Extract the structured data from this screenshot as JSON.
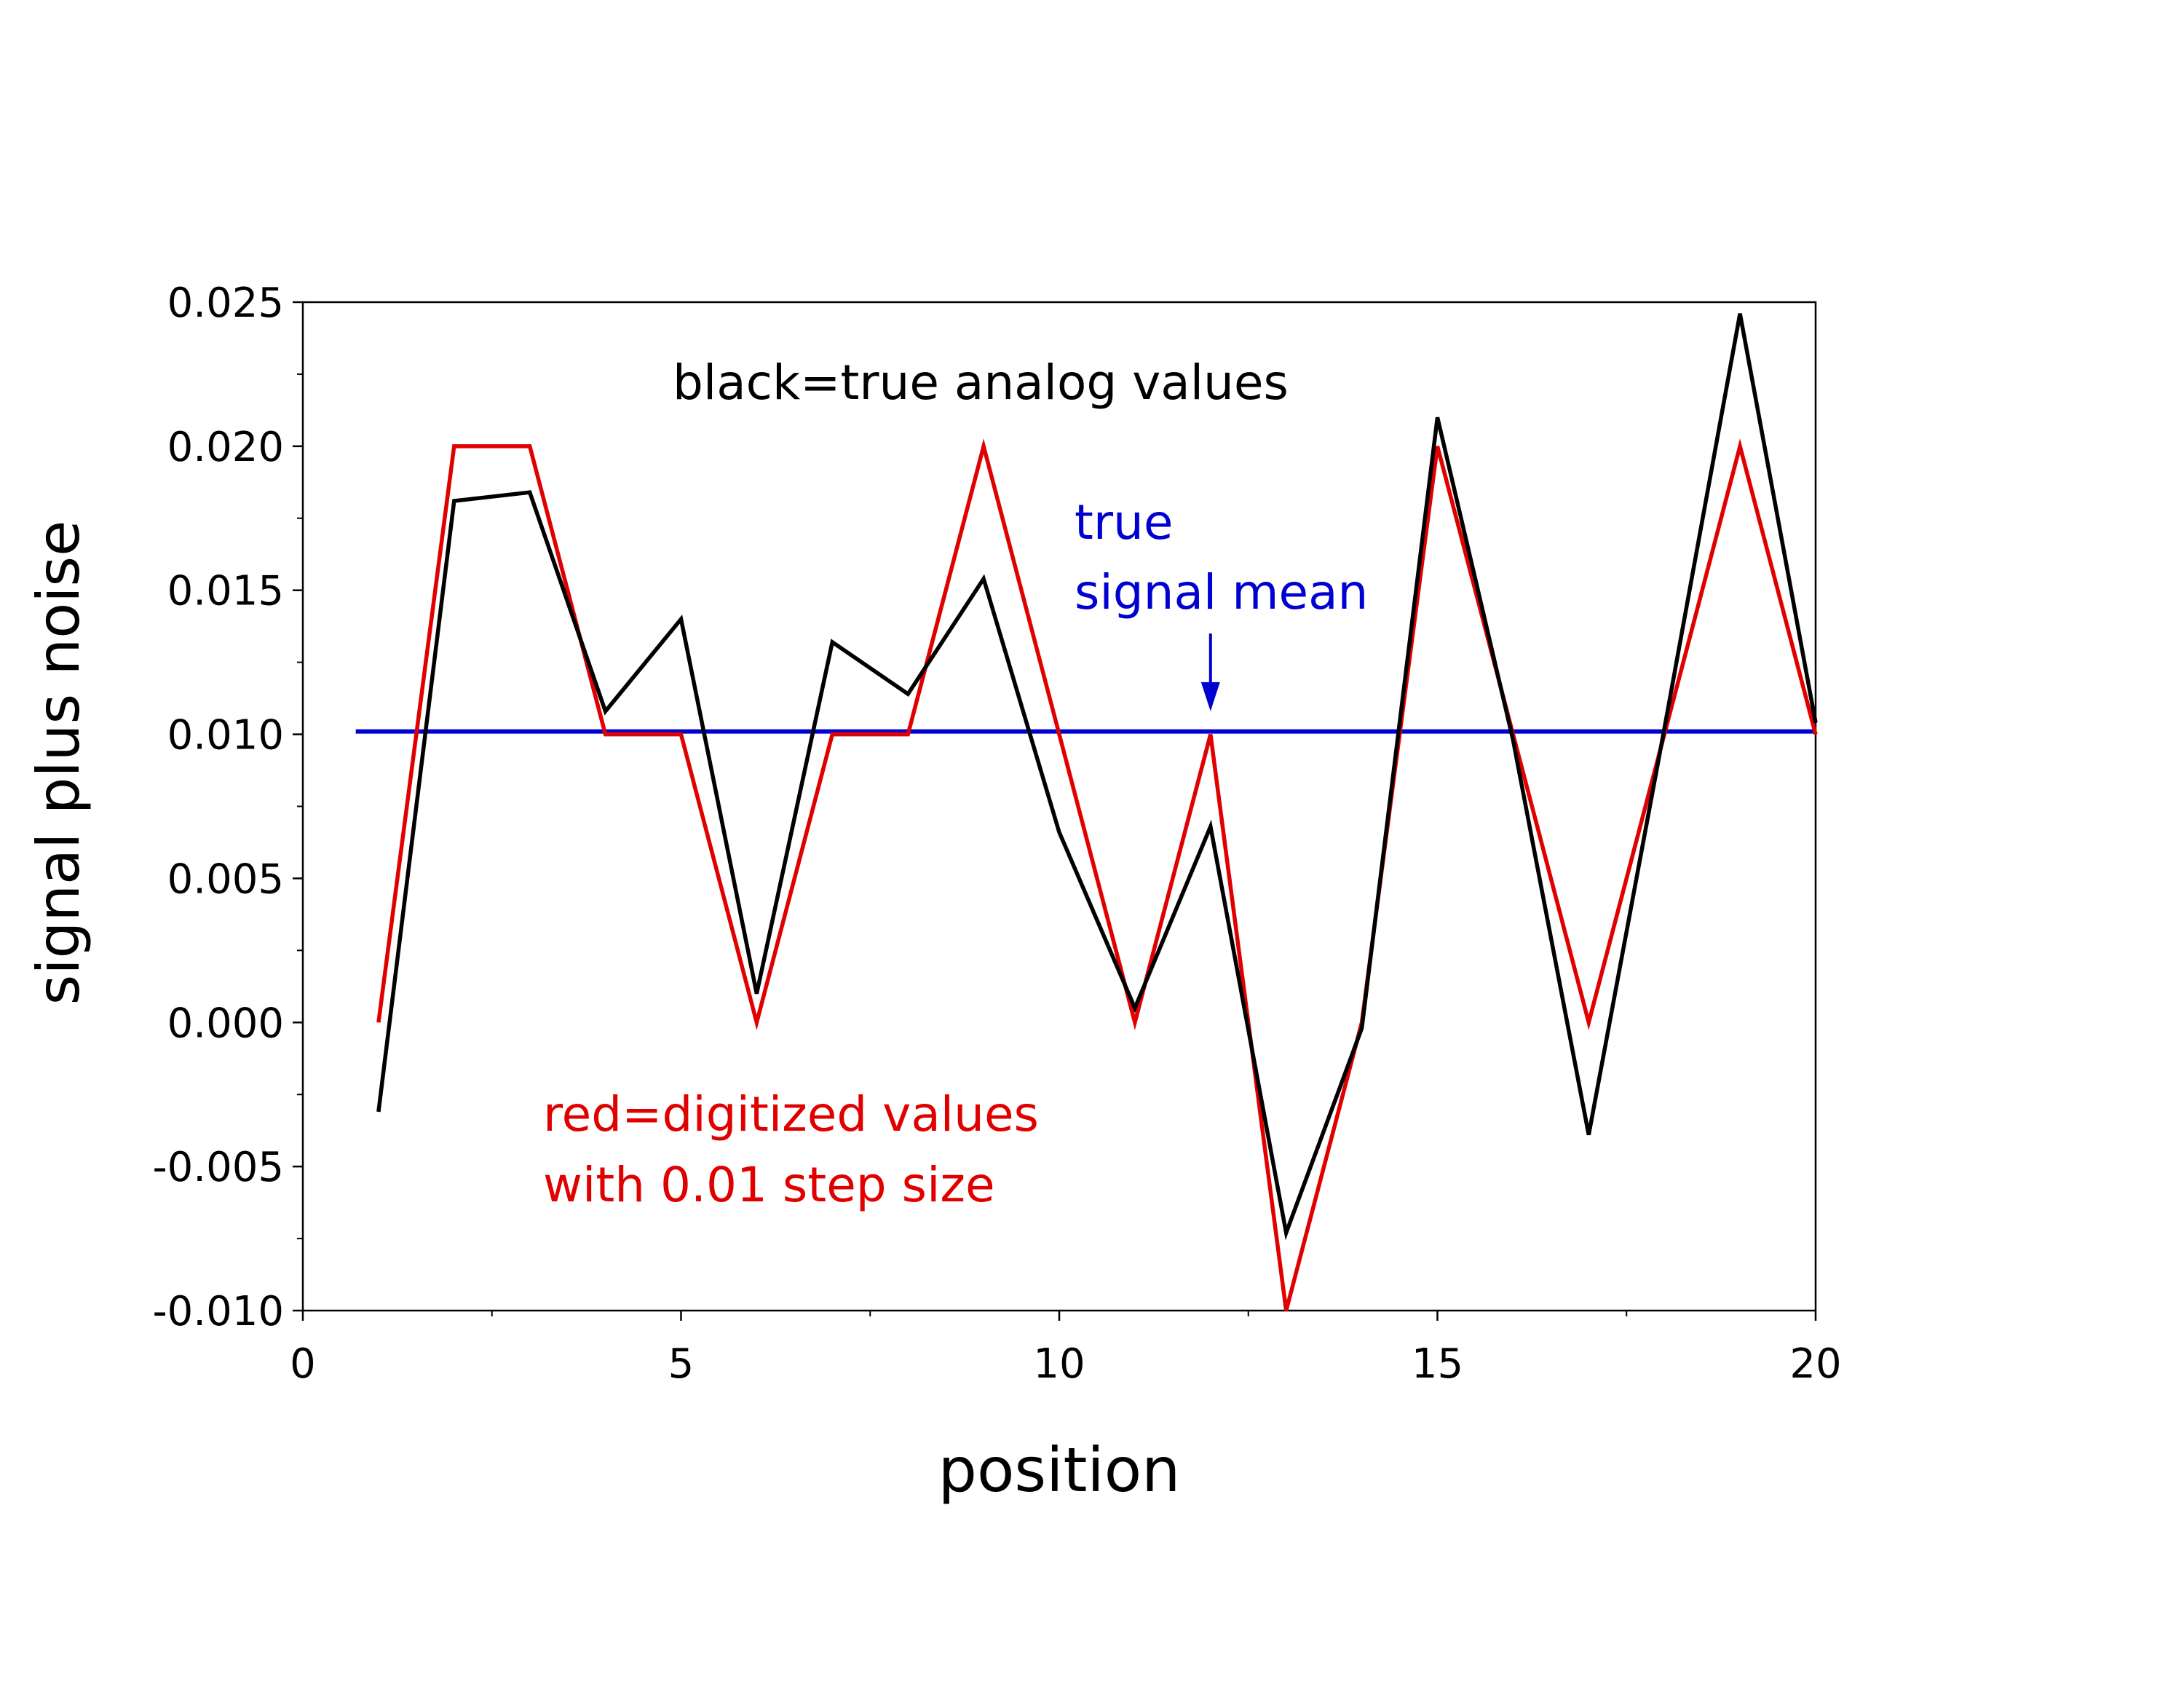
{
  "chart_data": {
    "type": "line",
    "title": "",
    "xlabel": "position",
    "ylabel": "signal plus noise",
    "xlim": [
      0,
      20
    ],
    "ylim": [
      -0.01,
      0.025
    ],
    "x_ticks": [
      0,
      5,
      10,
      15,
      20
    ],
    "x_tick_labels": [
      "0",
      "5",
      "10",
      "15",
      "20"
    ],
    "y_ticks": [
      -0.01,
      -0.005,
      0.0,
      0.005,
      0.01,
      0.015,
      0.02,
      0.025
    ],
    "y_tick_labels": [
      "-0.010",
      "-0.005",
      "0.000",
      "0.005",
      "0.010",
      "0.015",
      "0.020",
      "0.025"
    ],
    "grid": false,
    "colors": {
      "analog": "#000000",
      "digitized": "#e00000",
      "mean": "#0000d0"
    },
    "series": [
      {
        "color": "#000000",
        "x": [
          1,
          2,
          3,
          4,
          5,
          6,
          7,
          8,
          9,
          10,
          11,
          12,
          13,
          14,
          15,
          16,
          17,
          18,
          19,
          20
        ],
        "values": [
          -0.0031,
          0.0181,
          0.0184,
          0.0108,
          0.014,
          0.001,
          0.0132,
          0.0114,
          0.0154,
          0.0066,
          0.0005,
          0.0068,
          -0.0073,
          -0.0002,
          0.021,
          0.0098,
          -0.0039,
          0.0102,
          0.0246,
          0.0104
        ]
      },
      {
        "color": "#e00000",
        "x": [
          1,
          2,
          3,
          4,
          5,
          6,
          7,
          8,
          9,
          10,
          11,
          12,
          13,
          14,
          15,
          16,
          17,
          18,
          19,
          20
        ],
        "values": [
          0.0,
          0.02,
          0.02,
          0.01,
          0.01,
          0.0,
          0.01,
          0.01,
          0.02,
          0.01,
          0.0,
          0.01,
          -0.01,
          0.0,
          0.02,
          0.01,
          0.0,
          0.01,
          0.02,
          0.01
        ]
      },
      {
        "color": "#0000d0",
        "x": [
          0.7,
          20
        ],
        "values": [
          0.0101,
          0.0101
        ]
      }
    ],
    "annotations": [
      {
        "text": "black=true analog values",
        "color": "#000000"
      },
      {
        "text": "true",
        "color": "#0000d0"
      },
      {
        "text": "signal mean",
        "color": "#0000d0"
      },
      {
        "text": "red=digitized values",
        "color": "#e00000"
      },
      {
        "text": "with 0.01 step size",
        "color": "#e00000"
      }
    ],
    "arrow": {
      "x": 12,
      "y_from": 0.0135,
      "y_to": 0.0108
    }
  }
}
